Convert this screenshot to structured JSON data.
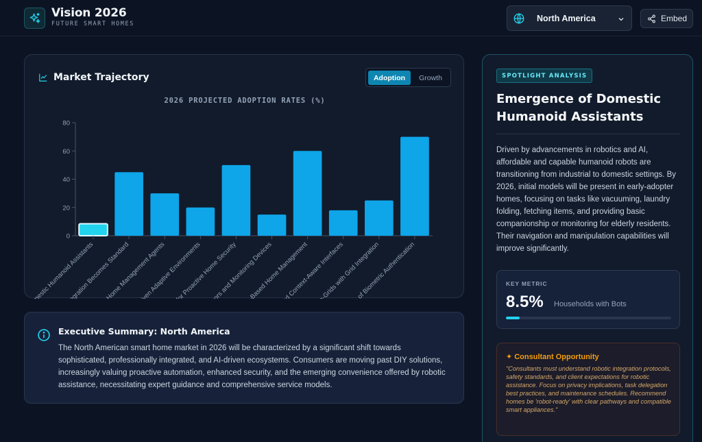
{
  "header": {
    "title": "Vision 2026",
    "subtitle": "FUTURE SMART HOMES",
    "logo_icon": "sparkles-icon",
    "region_select": {
      "value": "North America",
      "icon": "globe-icon"
    },
    "embed_button": {
      "label": "Embed",
      "icon": "share-icon"
    }
  },
  "chart_panel": {
    "title": "Market Trajectory",
    "toggle": {
      "active": "Adoption",
      "inactive": "Growth"
    }
  },
  "chart_data": {
    "type": "bar",
    "title": "2026 PROJECTED ADOPTION RATES (%)",
    "xlabel": "",
    "ylabel": "",
    "ylim": [
      0,
      80
    ],
    "yticks": [
      0,
      20,
      40,
      60,
      80
    ],
    "categories": [
      "Domestic Humanoid Assistants",
      "Integration Becomes Standard",
      "AI Home Management Agents",
      "Driven Adaptive Environments",
      "AI for Proactive Home Security",
      "Sensors and Monitoring Devices",
      "Vision-Based Home Management",
      "and Context-Aware Interfaces",
      "Micro-Grids with Grid Integration",
      "of Biometric Authentication"
    ],
    "values": [
      8.5,
      45,
      30,
      20,
      50,
      15,
      60,
      18,
      25,
      70
    ],
    "highlight_index": 0,
    "colors": {
      "bar": "#0ea5e9",
      "highlight": "#22d3ee",
      "highlight_stroke": "#e0f7ff"
    },
    "grid": false
  },
  "summary": {
    "icon": "info-icon",
    "title": "Executive Summary: North America",
    "body": "The North American smart home market in 2026 will be characterized by a significant shift towards sophisticated, professionally integrated, and AI-driven ecosystems. Consumers are moving past DIY solutions, increasingly valuing proactive automation, enhanced security, and the emerging convenience offered by robotic assistance, necessitating expert guidance and comprehensive service models."
  },
  "spotlight": {
    "badge": "SPOTLIGHT ANALYSIS",
    "title": "Emergence of Domestic Humanoid Assistants",
    "body": "Driven by advancements in robotics and AI, affordable and capable humanoid robots are transitioning from industrial to domestic settings. By 2026, initial models will be present in early-adopter homes, focusing on tasks like vacuuming, laundry folding, fetching items, and providing basic companionship or monitoring for elderly residents. Their navigation and manipulation capabilities will improve significantly.",
    "metric": {
      "label": "KEY METRIC",
      "value": "8.5%",
      "description": "Households with Bots",
      "progress": 0.085
    },
    "consultant": {
      "title": "Consultant Opportunity",
      "body": "\"Consultants must understand robotic integration protocols, safety standards, and client expectations for robotic assistance. Focus on privacy implications, task delegation best practices, and maintenance schedules. Recommend homes be 'robot-ready' with clear pathways and compatible smart appliances.\""
    }
  },
  "colors": {
    "accent": "#22d3ee",
    "background": "#0c1424",
    "panel": "#111b2b",
    "warning": "#f59e0b"
  }
}
